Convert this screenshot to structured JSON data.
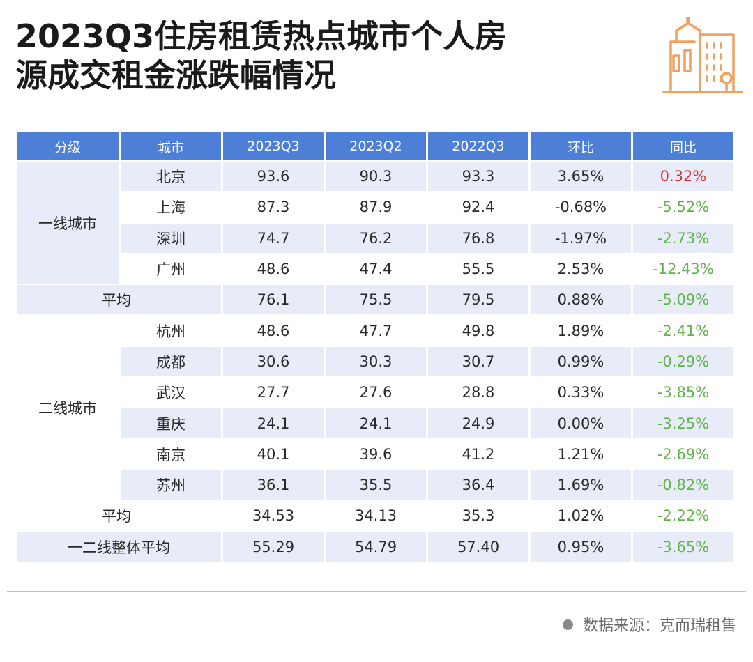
{
  "title": {
    "line1": "2023Q3住房租赁热点城市个人房",
    "line2": "源成交租金涨跌幅情况"
  },
  "colors": {
    "header": "#4e7fd6",
    "shade": "#e8ecf8",
    "up": "#e0323b",
    "down": "#5fb548",
    "logo": "#f0a060"
  },
  "table": {
    "headers": [
      "分级",
      "城市",
      "2023Q3",
      "2023Q2",
      "2022Q3",
      "环比",
      "同比"
    ],
    "tier1": {
      "label": "一线城市",
      "rows": [
        {
          "city": "北京",
          "q3_2023": "93.6",
          "q2_2023": "90.3",
          "q3_2022": "93.3",
          "qoq": "3.65%",
          "yoy": "0.32%"
        },
        {
          "city": "上海",
          "q3_2023": "87.3",
          "q2_2023": "87.9",
          "q3_2022": "92.4",
          "qoq": "-0.68%",
          "yoy": "-5.52%"
        },
        {
          "city": "深圳",
          "q3_2023": "74.7",
          "q2_2023": "76.2",
          "q3_2022": "76.8",
          "qoq": "-1.97%",
          "yoy": "-2.73%"
        },
        {
          "city": "广州",
          "q3_2023": "48.6",
          "q2_2023": "47.4",
          "q3_2022": "55.5",
          "qoq": "2.53%",
          "yoy": "-12.43%"
        }
      ],
      "average": {
        "label": "平均",
        "q3_2023": "76.1",
        "q2_2023": "75.5",
        "q3_2022": "79.5",
        "qoq": "0.88%",
        "yoy": "-5.09%"
      }
    },
    "tier2": {
      "label": "二线城市",
      "rows": [
        {
          "city": "杭州",
          "q3_2023": "48.6",
          "q2_2023": "47.7",
          "q3_2022": "49.8",
          "qoq": "1.89%",
          "yoy": "-2.41%"
        },
        {
          "city": "成都",
          "q3_2023": "30.6",
          "q2_2023": "30.3",
          "q3_2022": "30.7",
          "qoq": "0.99%",
          "yoy": "-0.29%"
        },
        {
          "city": "武汉",
          "q3_2023": "27.7",
          "q2_2023": "27.6",
          "q3_2022": "28.8",
          "qoq": "0.33%",
          "yoy": "-3.85%"
        },
        {
          "city": "重庆",
          "q3_2023": "24.1",
          "q2_2023": "24.1",
          "q3_2022": "24.9",
          "qoq": "0.00%",
          "yoy": "-3.25%"
        },
        {
          "city": "南京",
          "q3_2023": "40.1",
          "q2_2023": "39.6",
          "q3_2022": "41.2",
          "qoq": "1.21%",
          "yoy": "-2.69%"
        },
        {
          "city": "苏州",
          "q3_2023": "36.1",
          "q2_2023": "35.5",
          "q3_2022": "36.4",
          "qoq": "1.69%",
          "yoy": "-0.82%"
        }
      ],
      "average": {
        "label": "平均",
        "q3_2023": "34.53",
        "q2_2023": "34.13",
        "q3_2022": "35.3",
        "qoq": "1.02%",
        "yoy": "-2.22%"
      }
    },
    "overall": {
      "label": "一二线整体平均",
      "q3_2023": "55.29",
      "q2_2023": "54.79",
      "q3_2022": "57.40",
      "qoq": "0.95%",
      "yoy": "-3.65%"
    }
  },
  "source": "数据来源：克而瑞租售"
}
